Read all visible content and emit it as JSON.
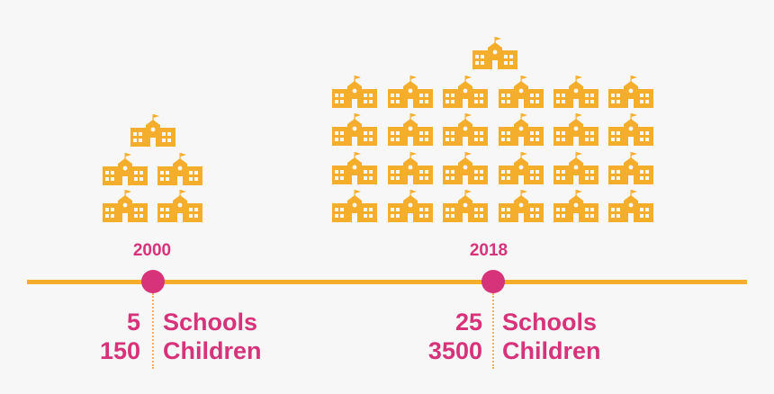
{
  "colors": {
    "school": "#f5ae2c",
    "accent": "#d6337a",
    "line": "#f5ae2c",
    "background": "#f7f7f7"
  },
  "milestones": [
    {
      "year": "2000",
      "schools": "5",
      "children": "150",
      "schools_label": "Schools",
      "children_label": "Children",
      "school_icon_count": 5
    },
    {
      "year": "2018",
      "schools": "25",
      "children": "3500",
      "schools_label": "Schools",
      "children_label": "Children",
      "school_icon_count": 25
    }
  ]
}
